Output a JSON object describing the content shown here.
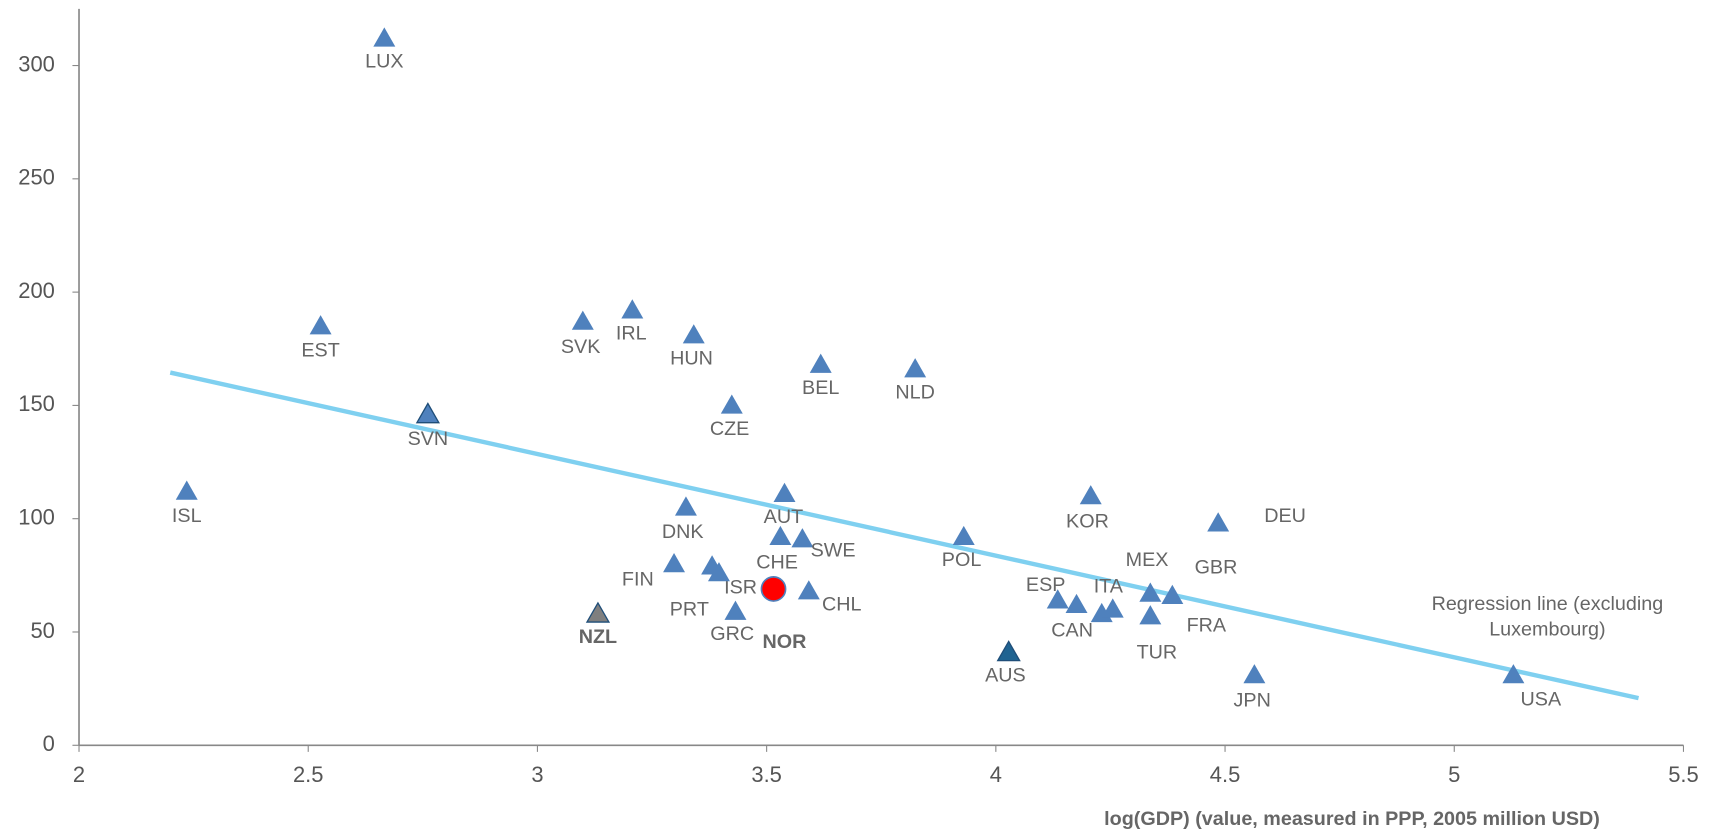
{
  "chart_data": {
    "type": "scatter",
    "x_label": "log(GDP) (value, measured in PPP, 2005 million USD)",
    "xlim": [
      2,
      5.5
    ],
    "xticks": [
      2,
      2.5,
      3,
      3.5,
      4,
      4.5,
      5,
      5.5
    ],
    "ylim": [
      0,
      325
    ],
    "yticks": [
      0,
      50,
      100,
      150,
      200,
      250,
      300
    ],
    "color": "#4f81bd",
    "labels": [
      "LUX",
      "EST",
      "SVN",
      "ISL",
      "SVK",
      "IRL",
      "HUN",
      "BEL",
      "NLD",
      "CZE",
      "AUT",
      "DNK",
      "CHE",
      "SWE",
      "FIN",
      "ISR",
      "PRT",
      "GRC",
      "CHL",
      "NZL",
      "POL",
      "AUS",
      "KOR",
      "GBR",
      "MEX",
      "FRA",
      "TUR",
      "ESP",
      "CAN",
      "ITA",
      null,
      "JPN",
      "USA"
    ],
    "x": [
      2.666,
      2.527,
      2.761,
      2.235,
      3.099,
      3.207,
      3.341,
      3.618,
      3.824,
      3.424,
      3.539,
      3.324,
      3.53,
      3.578,
      3.298,
      3.381,
      3.396,
      3.432,
      3.592,
      3.132,
      3.93,
      4.028,
      4.207,
      4.485,
      4.337,
      4.385,
      4.337,
      4.135,
      4.176,
      4.231,
      4.255,
      4.564,
      5.129
    ],
    "values": [
      312,
      185,
      146,
      112,
      187,
      192,
      181,
      168,
      166,
      150,
      111,
      105,
      92,
      91,
      80,
      79,
      76,
      59,
      68,
      58,
      92,
      41,
      110,
      98,
      67,
      66,
      57,
      64,
      62,
      58,
      60,
      31,
      31
    ],
    "highlight": {
      "label": "NOR",
      "x": 3.515,
      "value": 69,
      "color": "#ff0000"
    },
    "regression": {
      "x": [
        2.199,
        5.402
      ],
      "values": [
        164.5,
        20.8
      ],
      "color": "#7fd0f0",
      "label": [
        "Regression line (excluding",
        "Luxembourg)"
      ]
    },
    "annotations": [
      "DEU"
    ]
  }
}
